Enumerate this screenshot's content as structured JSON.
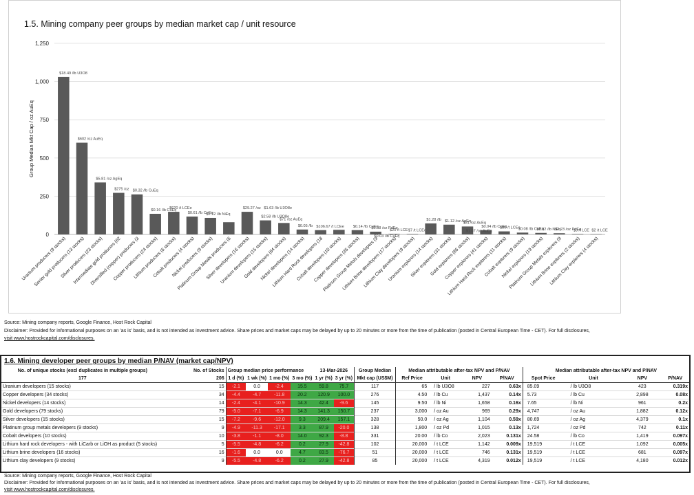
{
  "chart_data": {
    "type": "bar",
    "title": "1.5. Mining company peer groups by median market cap / unit resource",
    "xlabel": "",
    "ylabel": "Group Median Mkt Cap / oz AuEq",
    "ylim": [
      0,
      1250
    ],
    "yticks": [
      "0",
      "250",
      "500",
      "750",
      "1,000",
      "1,250"
    ],
    "grid": true,
    "bar_color": "#595959",
    "categories": [
      "Uranium producers (9 stocks)",
      "Senior gold producers (13 stocks)",
      "Silver producers (23 stocks)",
      "Intermediate gold producers (62",
      "Diversified (copper) producers (3",
      "Copper producers (24 stocks)",
      "Lithium producers (6 stocks)",
      "Cobalt producers (4 stocks)",
      "Nickel producers (9 stocks)",
      "Platinum Group Metals producers (6",
      "Silver developers (16 stocks)",
      "Uranium developers (15 stocks)",
      "Gold developers (84 stocks)",
      "Nickel developers (14 stocks)",
      "Lithium Hard Rock developers (18",
      "Cobalt developers (10 stocks)",
      "Copper developers (35 stocks)",
      "Platinum Group Metals developers (9",
      "Lithium Brine developers (17 stocks)",
      "Lithium Clay developers (9 stocks)",
      "Uranium explorers (14 stocks)",
      "Silver explorers (31 stocks)",
      "Gold explorers (86 stocks)",
      "Copper explorers (41 stocks)",
      "Lithium Hard Rock explorers (11 stocks)",
      "Cobalt explorers (9 stocks)",
      "Nickel explorers (19 stocks)",
      "Platinum Group Metals explorers (9",
      "Lithium Brine explorers (2 stocks)",
      "Lithium Clay explorers (4 stocks)"
    ],
    "values": [
      1030,
      600,
      340,
      272,
      262,
      135,
      148,
      117,
      108,
      80,
      148,
      92,
      75,
      32,
      28,
      30,
      28,
      18,
      4,
      3,
      72,
      64,
      52,
      28,
      20,
      12,
      10,
      8,
      3,
      2
    ],
    "data_labels": [
      "$18.49 /lb U3O8",
      "$602 /oz AuEq",
      "$5.81 /oz AgEq",
      "$275 /oz",
      "$0.32 /lb CuEq",
      "$0.16 /lb CuEq",
      "$620 /t LCEe",
      "$0.61 /lb CoEq",
      "$2.12 /lb NiEq",
      "",
      "$29.27 /oz",
      "$2.58 /lb U3O8e",
      "$71 /oz AuEq",
      "$0.05 /lb",
      "$106.67 /t LCEe",
      "",
      "$0.14 /lb CuEq",
      "$5.58 /oz PdEq",
      "$20 /t LCE",
      "$7 /t LCEe",
      "$1.28 /lb",
      "$1.12 /oz AgEq",
      "$31 /oz AuEq",
      "$0.04 /lb CuEq",
      "$80 /t LCEe",
      "$0.08 /lb CoEq",
      "$0.02 /lb NiEq",
      "$3.23 /oz PdEq",
      "$3 /t LCE",
      "$2 /t LCE"
    ],
    "extra_labels": [
      "$1.63 /lb U3O8e",
      "$0.03 /lb CuEq",
      "$1.07 /oz AuEq"
    ]
  },
  "notes": {
    "source": "Source: Mining company reports, Google Finance, Host Rock Capital",
    "disclaimer": "Disclaimer: Provided for informational purposes on an 'as is' basis, and is not intended as investment advice. Share prices and market caps may be delayed by up to 20 minutes or more from the time of publication (posted in Central European Time - CET). For full disclosures,",
    "link": "visit www.hostrockcapital.com/disclosures."
  },
  "table": {
    "title": "1.6. Mining developer peer groups by median P/NAV (market cap/NPV)",
    "unique_label": "No. of unique stocks (excl duplicates in multiple groups)",
    "unique_value": "177",
    "stocks_header": "No. of Stocks",
    "stocks_total": "206",
    "perf_header": "Group median price performance",
    "date": "13-Mar-2026",
    "perf_cols": [
      "1 d (%)",
      "1 wk (%)",
      "1 mo (%)",
      "3 mo (%)",
      "1 yr (%)",
      "3 yr (%)"
    ],
    "median_header": "Group Median",
    "mktcap_header": "Mkt cap (US$M)",
    "ref_header": "Median attributable after-tax NPV and P/NAV",
    "ref_cols": [
      "Ref Price",
      "Unit",
      "NPV",
      "P/NAV"
    ],
    "spot_header": "Median attributable after-tax NPV and P/NAV",
    "spot_cols": [
      "Spot Price",
      "Unit",
      "NPV",
      "P/NAV"
    ],
    "rows": [
      {
        "name": "Uranium developers (15 stocks)",
        "n": "15",
        "perf": [
          "-2.1",
          "0.0",
          "-2.4",
          "15.5",
          "59.8",
          "75.7"
        ],
        "c": [
          "red",
          "wht",
          "red",
          "grn",
          "grn",
          "grn"
        ],
        "mc": "117",
        "rp": "65",
        "ru": "/ lb U3O8",
        "rn": "227",
        "rv": "0.63x",
        "sp": "85.09",
        "su": "/ lb U3O8",
        "sn": "423",
        "sv": "0.319x"
      },
      {
        "name": "Copper developers (34 stocks)",
        "n": "34",
        "perf": [
          "-4.4",
          "-4.7",
          "-11.8",
          "20.2",
          "120.9",
          "100.0"
        ],
        "c": [
          "red",
          "red",
          "red",
          "grn",
          "grn",
          "grn"
        ],
        "mc": "276",
        "rp": "4.50",
        "ru": "/ lb Cu",
        "rn": "1,437",
        "rv": "0.14x",
        "sp": "5.73",
        "su": "/ lb Cu",
        "sn": "2,898",
        "sv": "0.08x"
      },
      {
        "name": "Nickel developers (14 stocks)",
        "n": "14",
        "perf": [
          "-2.4",
          "-4.1",
          "-10.9",
          "14.3",
          "42.4",
          "-9.6"
        ],
        "c": [
          "red",
          "red",
          "red",
          "grn",
          "grn",
          "red"
        ],
        "mc": "145",
        "rp": "9.50",
        "ru": "/ lb Ni",
        "rn": "1,658",
        "rv": "0.16x",
        "sp": "7.65",
        "su": "/ lb Ni",
        "sn": "961",
        "sv": "0.2x"
      },
      {
        "name": "Gold developers (79 stocks)",
        "n": "79",
        "perf": [
          "-5.0",
          "-7.1",
          "-6.9",
          "14.3",
          "141.3",
          "150.7"
        ],
        "c": [
          "red",
          "red",
          "red",
          "grn",
          "grn",
          "grn"
        ],
        "mc": "237",
        "rp": "3,000",
        "ru": "/ oz Au",
        "rn": "969",
        "rv": "0.29x",
        "sp": "4,747",
        "su": "/ oz Au",
        "sn": "1,882",
        "sv": "0.12x"
      },
      {
        "name": "Silver developers (15 stocks)",
        "n": "15",
        "perf": [
          "-7.2",
          "-9.6",
          "-12.0",
          "9.3",
          "209.4",
          "157.1"
        ],
        "c": [
          "red",
          "red",
          "red",
          "grn",
          "grn",
          "grn"
        ],
        "mc": "328",
        "rp": "50.0",
        "ru": "/ oz Ag",
        "rn": "1,104",
        "rv": "0.59x",
        "sp": "80.69",
        "su": "/ oz Ag",
        "sn": "4,379",
        "sv": "0.1x"
      },
      {
        "name": "Platinum group metals developers (9 stocks)",
        "n": "9",
        "perf": [
          "-4.9",
          "-11.3",
          "-17.1",
          "3.3",
          "87.9",
          "-20.0"
        ],
        "c": [
          "red",
          "red",
          "red",
          "grn",
          "grn",
          "red"
        ],
        "mc": "138",
        "rp": "1,800",
        "ru": "/ oz Pd",
        "rn": "1,015",
        "rv": "0.13x",
        "sp": "1,724",
        "su": "/ oz Pd",
        "sn": "742",
        "sv": "0.11x"
      },
      {
        "name": "Cobalt developers (10 stocks)",
        "n": "10",
        "perf": [
          "-3.8",
          "-1.1",
          "-8.0",
          "14.0",
          "92.3",
          "-8.8"
        ],
        "c": [
          "red",
          "red",
          "red",
          "grn",
          "grn",
          "red"
        ],
        "mc": "331",
        "rp": "20.00",
        "ru": "/ lb Co",
        "rn": "2,023",
        "rv": "0.131x",
        "sp": "24.58",
        "su": "/ lb Co",
        "sn": "1,419",
        "sv": "0.097x"
      },
      {
        "name": "Lithium hard rock developers - with LiCarb or LiOH as product (5 stocks)",
        "n": "5",
        "perf": [
          "-5.5",
          "-4.8",
          "-6.2",
          "0.2",
          "27.9",
          "-42.8"
        ],
        "c": [
          "red",
          "red",
          "red",
          "grn",
          "grn",
          "red"
        ],
        "mc": "102",
        "rp": "20,000",
        "ru": "/ t LCE",
        "rn": "1,142",
        "rv": "0.009x",
        "sp": "19,519",
        "su": "/ t LCE",
        "sn": "1,092",
        "sv": "0.005x"
      },
      {
        "name": "Lithium brine developers (16 stocks)",
        "n": "16",
        "perf": [
          "-1.6",
          "0.0",
          "0.0",
          "4.7",
          "83.5",
          "-76.7"
        ],
        "c": [
          "red",
          "wht",
          "wht",
          "grn",
          "grn",
          "red"
        ],
        "mc": "51",
        "rp": "20,000",
        "ru": "/ t LCE",
        "rn": "746",
        "rv": "0.131x",
        "sp": "19,519",
        "su": "/ t LCE",
        "sn": "681",
        "sv": "0.097x"
      },
      {
        "name": "Lithium clay developers (9 stocks)",
        "n": "9",
        "perf": [
          "-5.5",
          "-4.8",
          "-6.2",
          "0.2",
          "27.9",
          "-42.8"
        ],
        "c": [
          "red",
          "red",
          "red",
          "grn",
          "grn",
          "red"
        ],
        "mc": "85",
        "rp": "20,000",
        "ru": "/ t LCE",
        "rn": "4,319",
        "rv": "0.012x",
        "sp": "19,519",
        "su": "/ t LCE",
        "sn": "4,180",
        "sv": "0.012x"
      }
    ]
  },
  "notes2": {
    "source": "Source: Mining company reports, Google Finance, Host Rock Capital",
    "disclaimer": "Disclaimer: Provided for informational purposes on an 'as is' basis, and is not intended as investment advice. Share prices and market caps may be delayed by up to 20 minutes or more from the time of publication (posted in Central European Time - CET). For full disclosures,",
    "link": "visit www.hostrockcapital.com/disclosures."
  }
}
